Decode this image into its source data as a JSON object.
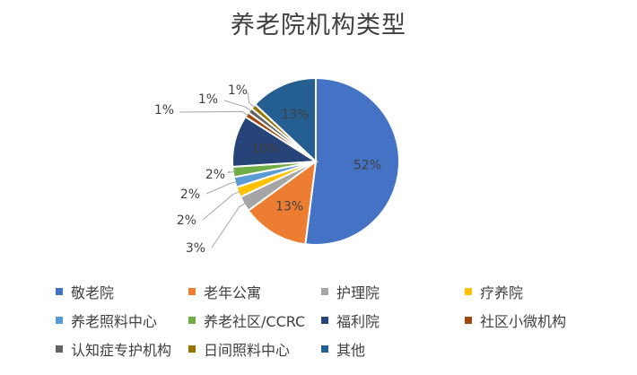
{
  "chart_data": {
    "type": "pie",
    "title": "养老院机构类型",
    "series": [
      {
        "values": [
          52,
          13,
          3,
          2,
          2,
          2,
          10,
          1,
          1,
          1,
          13
        ]
      }
    ],
    "categories": [
      "敬老院",
      "老年公寓",
      "护理院",
      "疗养院",
      "养老照料中心",
      "养老社区/CCRC",
      "福利院",
      "社区小微机构",
      "认知症专护机构",
      "日间照料中心",
      "其他"
    ],
    "data_labels": [
      "52%",
      "13%",
      "3%",
      "2%",
      "2%",
      "2%",
      "10%",
      "1%",
      "1%",
      "1%",
      "13%"
    ],
    "colors": [
      "#4472C4",
      "#ED7D31",
      "#A5A5A5",
      "#FFC000",
      "#5B9BD5",
      "#70AD47",
      "#264478",
      "#9E480E",
      "#636363",
      "#997300",
      "#255E91"
    ],
    "legend": "bottom"
  }
}
